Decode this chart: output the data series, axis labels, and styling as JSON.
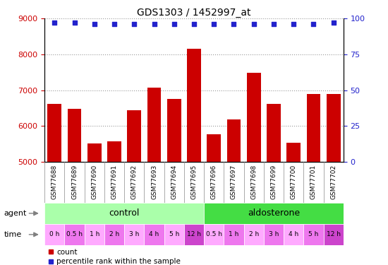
{
  "title": "GDS1303 / 1452997_at",
  "samples": [
    "GSM77688",
    "GSM77689",
    "GSM77690",
    "GSM77691",
    "GSM77692",
    "GSM77693",
    "GSM77694",
    "GSM77695",
    "GSM77696",
    "GSM77697",
    "GSM77698",
    "GSM77699",
    "GSM77700",
    "GSM77701",
    "GSM77702"
  ],
  "counts": [
    6620,
    6480,
    5510,
    5560,
    6430,
    7060,
    6760,
    8160,
    5760,
    6180,
    7480,
    6620,
    5530,
    6890,
    6890
  ],
  "percentiles": [
    97,
    97,
    96,
    96,
    96,
    96,
    96,
    96,
    96,
    96,
    96,
    96,
    96,
    96,
    97
  ],
  "ylim_left": [
    5000,
    9000
  ],
  "ylim_right": [
    0,
    100
  ],
  "yticks_left": [
    5000,
    6000,
    7000,
    8000,
    9000
  ],
  "yticks_right": [
    0,
    25,
    50,
    75,
    100
  ],
  "bar_color": "#cc0000",
  "dot_color": "#2222cc",
  "agent_colors": [
    "#aaffaa",
    "#44dd44"
  ],
  "time_colors": [
    "#ffaaff",
    "#ee77ee",
    "#ffaaff",
    "#ee77ee",
    "#ffaaff",
    "#ee77ee",
    "#ffaaff",
    "#cc44cc",
    "#ffaaff",
    "#ee77ee",
    "#ffaaff",
    "#ee77ee",
    "#ffaaff",
    "#ee77ee",
    "#cc44cc"
  ],
  "time_labels": [
    "0 h",
    "0.5 h",
    "1 h",
    "2 h",
    "3 h",
    "4 h",
    "5 h",
    "12 h",
    "0.5 h",
    "1 h",
    "2 h",
    "3 h",
    "4 h",
    "5 h",
    "12 h"
  ],
  "tick_label_color": "#cc0000",
  "right_tick_color": "#2222cc",
  "title_color": "#000000",
  "sample_box_color": "#cccccc",
  "sample_box_edge": "#888888"
}
